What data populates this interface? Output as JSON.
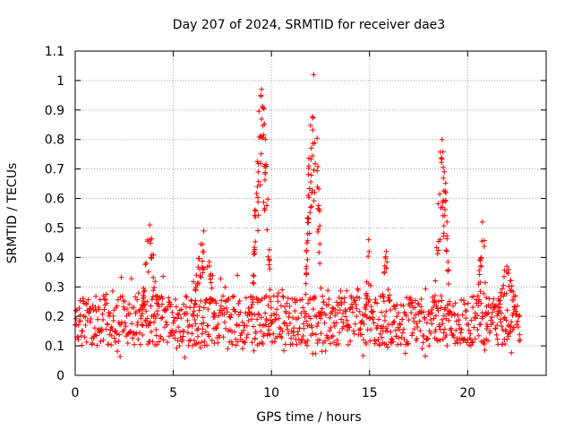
{
  "chart_data": {
    "type": "scatter",
    "title": "Day 207 of 2024, SRMTID for receiver dae3",
    "xlabel": "GPS time / hours",
    "ylabel": "SRMTID / TECUs",
    "xlim": [
      0,
      24
    ],
    "ylim": [
      0,
      1.1
    ],
    "xticks": [
      0,
      5,
      10,
      15,
      20
    ],
    "xtick_labels": [
      "0",
      "5",
      "10",
      "15",
      "20"
    ],
    "yticks": [
      0,
      0.1,
      0.2,
      0.3,
      0.4,
      0.5,
      0.6,
      0.7,
      0.8,
      0.9,
      1,
      1.1
    ],
    "ytick_labels": [
      "0",
      "0.1",
      "0.2",
      "0.3",
      "0.4",
      "0.5",
      "0.6",
      "0.7",
      "0.8",
      "0.9",
      "1",
      "1.1"
    ],
    "grid": true,
    "marker": "+",
    "color": "#ff0000",
    "data_range": [
      0,
      22.7
    ],
    "background_band": [
      0.1,
      0.27
    ],
    "bursts": [
      {
        "x_start": 3.4,
        "x_end": 4.2,
        "peak": 0.51
      },
      {
        "x_start": 6.0,
        "x_end": 7.1,
        "peak": 0.49
      },
      {
        "x_start": 9.0,
        "x_end": 10.0,
        "peak": 0.97
      },
      {
        "x_start": 11.7,
        "x_end": 12.6,
        "peak": 1.02
      },
      {
        "x_start": 14.8,
        "x_end": 15.1,
        "peak": 0.46
      },
      {
        "x_start": 15.6,
        "x_end": 16.1,
        "peak": 0.42
      },
      {
        "x_start": 18.3,
        "x_end": 19.1,
        "peak": 0.8
      },
      {
        "x_start": 20.5,
        "x_end": 21.0,
        "peak": 0.52
      },
      {
        "x_start": 21.5,
        "x_end": 22.5,
        "peak": 0.37
      }
    ]
  }
}
